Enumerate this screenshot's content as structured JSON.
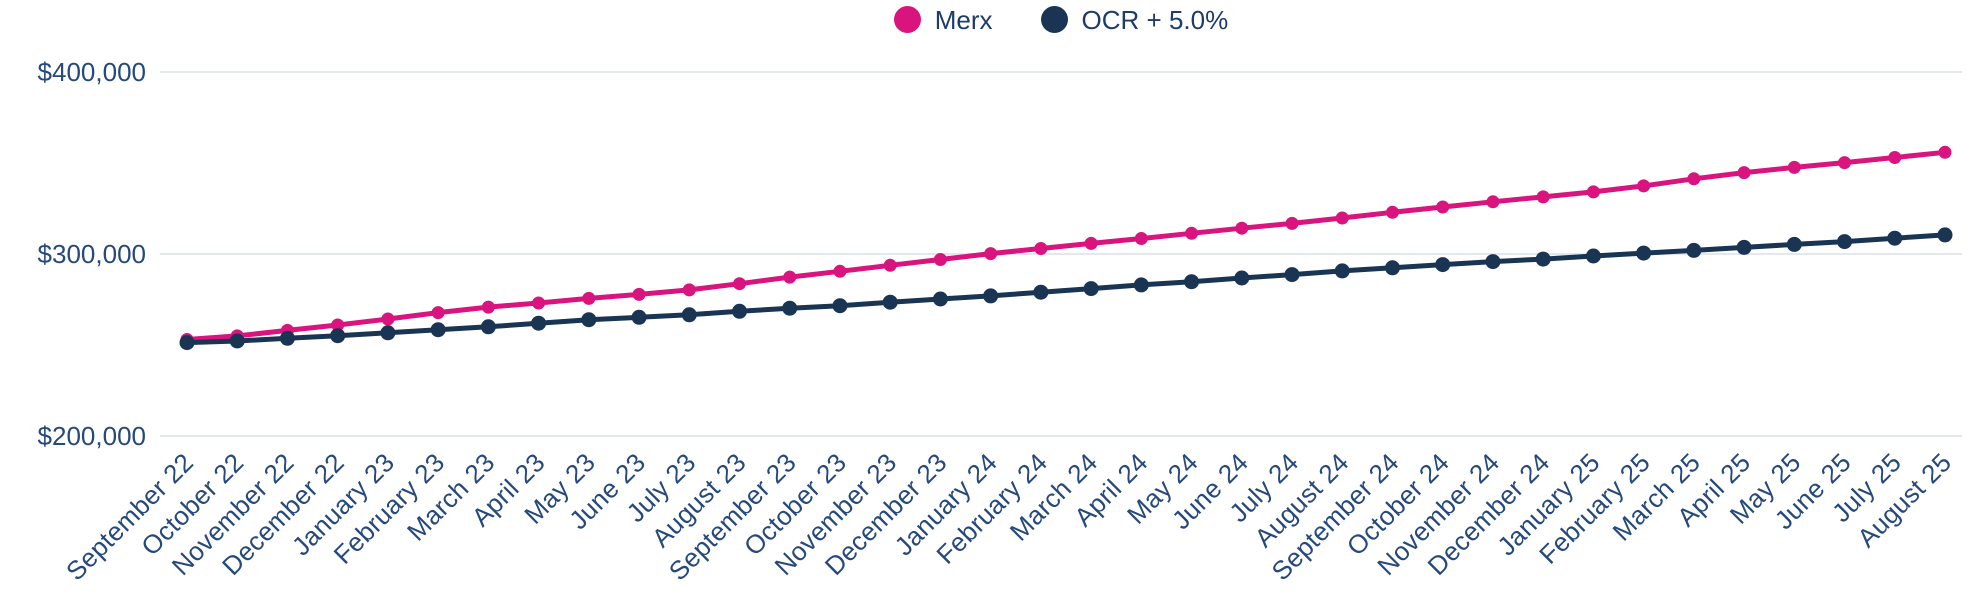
{
  "chart_data": {
    "type": "line",
    "title": "",
    "xlabel": "",
    "ylabel": "",
    "legend_position": "top-center",
    "grid": "horizontal-only",
    "x_labels": [
      "September 22",
      "October 22",
      "November 22",
      "December 22",
      "January 23",
      "February 23",
      "March 23",
      "April 23",
      "May 23",
      "June 23",
      "July 23",
      "August 23",
      "September 23",
      "October 23",
      "November 23",
      "December 23",
      "January 24",
      "February 24",
      "March 24",
      "April 24",
      "May 24",
      "June 24",
      "July 24",
      "August 24",
      "September 24",
      "October 24",
      "November 24",
      "December 24",
      "January 25",
      "February 25",
      "March 25",
      "April 25",
      "May 25",
      "June 25",
      "July 25",
      "August 25"
    ],
    "series": [
      {
        "name": "Merx",
        "color": "#D9147F",
        "values": [
          253000,
          255000,
          258000,
          261000,
          264300,
          267800,
          270800,
          273100,
          275600,
          277800,
          280300,
          283700,
          287300,
          290500,
          293800,
          297000,
          300200,
          303000,
          305800,
          308500,
          311400,
          314200,
          316800,
          319800,
          322900,
          325800,
          328700,
          331400,
          334100,
          337400,
          341300,
          344700,
          347600,
          350200,
          353000,
          355900
        ]
      },
      {
        "name": "OCR + 5.0%",
        "color": "#1A3454",
        "values": [
          251300,
          252200,
          253700,
          255100,
          256700,
          258400,
          260000,
          262000,
          263900,
          265200,
          266600,
          268500,
          270200,
          271600,
          273500,
          275300,
          277000,
          279000,
          281000,
          283000,
          284800,
          286800,
          288700,
          290700,
          292400,
          294200,
          295800,
          297200,
          298900,
          300500,
          302000,
          303600,
          305300,
          306800,
          308700,
          310500
        ]
      }
    ],
    "y_axis": {
      "min": 200000,
      "max": 400000,
      "ticks": [
        {
          "value": 400000,
          "label": "$400,000"
        },
        {
          "value": 300000,
          "label": "$300,000"
        },
        {
          "value": 200000,
          "label": "$200,000"
        }
      ]
    },
    "colors": {
      "background": "#FFFFFF",
      "grid_line": "#E3E8EF",
      "axis_text": "#25497C",
      "legend_text": "#1D3C69"
    }
  }
}
